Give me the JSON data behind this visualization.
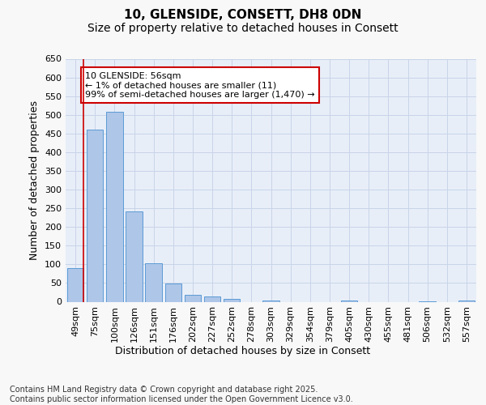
{
  "title_line1": "10, GLENSIDE, CONSETT, DH8 0DN",
  "title_line2": "Size of property relative to detached houses in Consett",
  "xlabel": "Distribution of detached houses by size in Consett",
  "ylabel": "Number of detached properties",
  "categories": [
    "49sqm",
    "75sqm",
    "100sqm",
    "126sqm",
    "151sqm",
    "176sqm",
    "202sqm",
    "227sqm",
    "252sqm",
    "278sqm",
    "303sqm",
    "329sqm",
    "354sqm",
    "379sqm",
    "405sqm",
    "430sqm",
    "455sqm",
    "481sqm",
    "506sqm",
    "532sqm",
    "557sqm"
  ],
  "values": [
    90,
    460,
    508,
    242,
    104,
    48,
    18,
    14,
    8,
    0,
    4,
    0,
    0,
    0,
    3,
    0,
    0,
    0,
    2,
    0,
    3
  ],
  "bar_color": "#aec6e8",
  "bar_edge_color": "#5b9bd5",
  "annotation_text": "10 GLENSIDE: 56sqm\n← 1% of detached houses are smaller (11)\n99% of semi-detached houses are larger (1,470) →",
  "annotation_box_color": "#ffffff",
  "annotation_box_edge": "#cc0000",
  "highlight_line_color": "#cc0000",
  "ylim": [
    0,
    650
  ],
  "yticks": [
    0,
    50,
    100,
    150,
    200,
    250,
    300,
    350,
    400,
    450,
    500,
    550,
    600,
    650
  ],
  "grid_color": "#c8d4e8",
  "background_color": "#e8eef8",
  "fig_background": "#f8f8f8",
  "footer_text": "Contains HM Land Registry data © Crown copyright and database right 2025.\nContains public sector information licensed under the Open Government Licence v3.0.",
  "title_fontsize": 11,
  "subtitle_fontsize": 10,
  "axis_label_fontsize": 9,
  "tick_fontsize": 8,
  "annotation_fontsize": 8,
  "footer_fontsize": 7
}
